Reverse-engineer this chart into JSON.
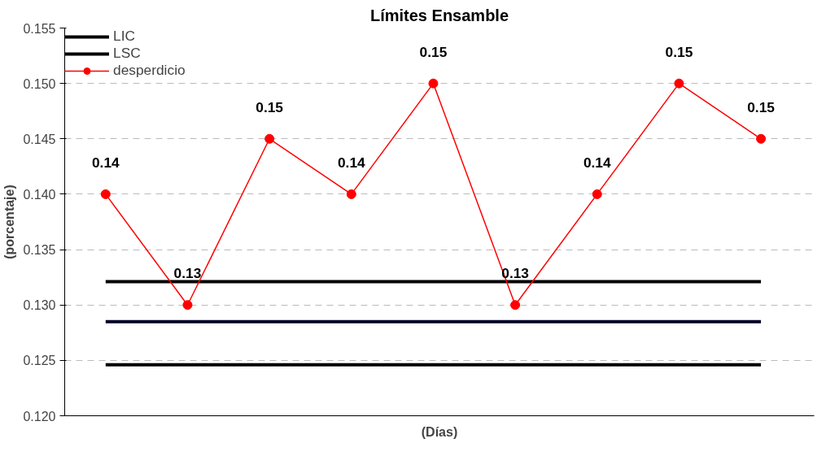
{
  "chart_data": {
    "type": "line",
    "title": "Límites Ensamble",
    "xlabel": "(Días)",
    "ylabel": "(porcentaje)",
    "categories": [
      null,
      null,
      null,
      null,
      null,
      null,
      null,
      null,
      null
    ],
    "series": [
      {
        "name": "LIC",
        "color": "#000000",
        "marker": "none",
        "values": [
          0.1246,
          0.1246,
          0.1246,
          0.1246,
          0.1246,
          0.1246,
          0.1246,
          0.1246,
          0.1246
        ]
      },
      {
        "name": "LSC",
        "color": "#000000",
        "marker": "none",
        "values": [
          0.1321,
          0.1321,
          0.1321,
          0.1321,
          0.1321,
          0.1321,
          0.1321,
          0.1321,
          0.1321
        ]
      },
      {
        "color": "#000022",
        "marker": "none",
        "values": [
          0.1285,
          0.1285,
          0.1285,
          0.1285,
          0.1285,
          0.1285,
          0.1285,
          0.1285,
          0.1285
        ]
      },
      {
        "name": "desperdicio",
        "color": "#ff0000",
        "marker": "circle",
        "values": [
          0.14,
          0.13,
          0.145,
          0.14,
          0.15,
          0.13,
          0.14,
          0.15,
          0.145
        ],
        "value_labels": [
          "0.14",
          "0.13",
          "0.15",
          "0.14",
          "0.15",
          "0.13",
          "0.14",
          "0.15",
          "0.15"
        ]
      }
    ],
    "ylim": [
      0.12,
      0.155
    ],
    "yticks": [
      "0.120",
      "0.125",
      "0.130",
      "0.135",
      "0.140",
      "0.145",
      "0.150",
      "0.155"
    ],
    "grid": "y",
    "legend": "top left"
  }
}
